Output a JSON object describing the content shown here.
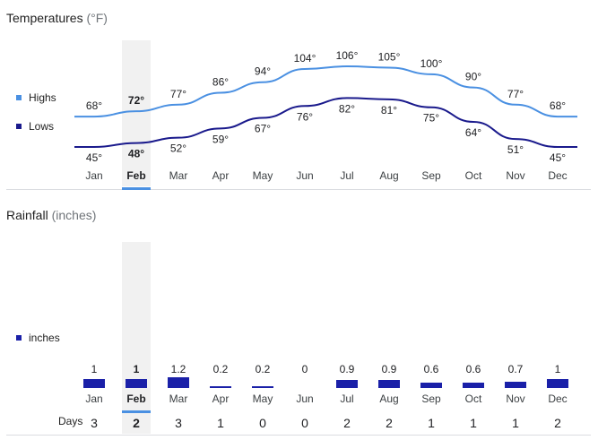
{
  "temperatures": {
    "title": "Temperatures",
    "unit": "(°F)",
    "legend": {
      "highs": "Highs",
      "lows": "Lows"
    }
  },
  "rainfall": {
    "title": "Rainfall",
    "unit": "(inches)",
    "legend": {
      "inches": "inches"
    },
    "days_label": "Days"
  },
  "selected_month": "Feb",
  "colors": {
    "highs": "#4a90e2",
    "lows": "#1a1a8c",
    "bars": "#1a20a8",
    "selected_bg": "#f1f1f1",
    "selected_bar": "#4a90e2"
  },
  "chart_data": [
    {
      "type": "line",
      "title": "Temperatures",
      "categories": [
        "Jan",
        "Feb",
        "Mar",
        "Apr",
        "May",
        "Jun",
        "Jul",
        "Aug",
        "Sep",
        "Oct",
        "Nov",
        "Dec"
      ],
      "series": [
        {
          "name": "Highs",
          "values": [
            68,
            72,
            77,
            86,
            94,
            104,
            106,
            105,
            100,
            90,
            77,
            68
          ],
          "labels": [
            "68°",
            "72°",
            "77°",
            "86°",
            "94°",
            "104°",
            "106°",
            "105°",
            "100°",
            "90°",
            "77°",
            "68°"
          ]
        },
        {
          "name": "Lows",
          "values": [
            45,
            48,
            52,
            59,
            67,
            76,
            82,
            81,
            75,
            64,
            51,
            45
          ],
          "labels": [
            "45°",
            "48°",
            "52°",
            "59°",
            "67°",
            "76°",
            "82°",
            "81°",
            "75°",
            "64°",
            "51°",
            "45°"
          ]
        }
      ]
    },
    {
      "type": "bar",
      "title": "Rainfall",
      "categories": [
        "Jan",
        "Feb",
        "Mar",
        "Apr",
        "May",
        "Jun",
        "Jul",
        "Aug",
        "Sep",
        "Oct",
        "Nov",
        "Dec"
      ],
      "series": [
        {
          "name": "inches",
          "values": [
            1,
            1,
            1.2,
            0.2,
            0.2,
            0,
            0.9,
            0.9,
            0.6,
            0.6,
            0.7,
            1
          ],
          "labels": [
            "1",
            "1",
            "1.2",
            "0.2",
            "0.2",
            "0",
            "0.9",
            "0.9",
            "0.6",
            "0.6",
            "0.7",
            "1"
          ]
        }
      ],
      "days": [
        3,
        2,
        3,
        1,
        0,
        0,
        2,
        2,
        1,
        1,
        1,
        2
      ]
    }
  ]
}
